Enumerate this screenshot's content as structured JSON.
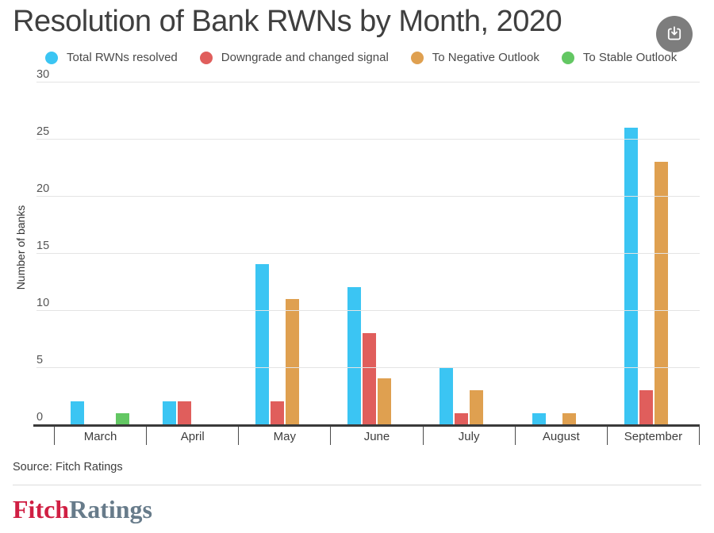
{
  "header": {
    "title": "Resolution of Bank RWNs by Month, 2020"
  },
  "chart_data": {
    "type": "bar",
    "title": "Resolution of Bank RWNs by Month, 2020",
    "categories": [
      "March",
      "April",
      "May",
      "June",
      "July",
      "August",
      "September"
    ],
    "series": [
      {
        "name": "Total RWNs resolved",
        "color": "#3bc5f3",
        "values": [
          2,
          2,
          14,
          12,
          5,
          1,
          26
        ]
      },
      {
        "name": "Downgrade and changed signal",
        "color": "#e05e5c",
        "values": [
          0,
          2,
          2,
          8,
          1,
          0,
          3
        ]
      },
      {
        "name": "To Negative Outlook",
        "color": "#dfa050",
        "values": [
          0,
          0,
          11,
          4,
          3,
          1,
          23
        ]
      },
      {
        "name": "To Stable Outlook",
        "color": "#63c763",
        "values": [
          1,
          0,
          0,
          0,
          0,
          0,
          0
        ]
      }
    ],
    "xlabel": "",
    "ylabel": "Number of banks",
    "ylim": [
      0,
      30
    ],
    "ytick_step": 5,
    "grid": true,
    "legend_position": "top"
  },
  "footer": {
    "source": "Source: Fitch Ratings",
    "logo": {
      "fitch": "Fitch",
      "ratings": "Ratings"
    }
  },
  "colors": {
    "accent_blue": "#3bc5f3",
    "accent_red": "#e05e5c",
    "accent_orange": "#dfa050",
    "accent_green": "#63c763",
    "axis": "#3a3a3a",
    "gridline": "#e4e4e4",
    "download_button_bg": "#7d7d7d",
    "logo_fitch": "#d01f43",
    "logo_ratings": "#677b8a"
  }
}
